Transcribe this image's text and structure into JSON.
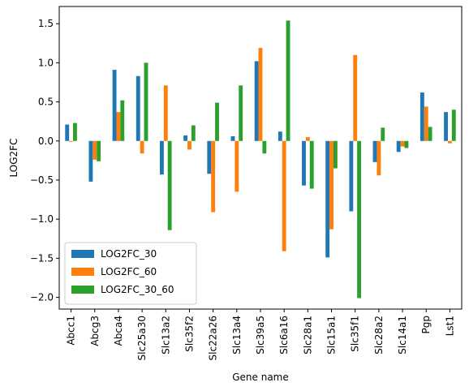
{
  "chart_data": {
    "type": "bar",
    "title": "",
    "xlabel": "Gene name",
    "ylabel": "LOG2FC",
    "ylim": [
      -2.15,
      1.72
    ],
    "yticks": [
      -2.0,
      -1.5,
      -1.0,
      -0.5,
      0.0,
      0.5,
      1.0,
      1.5
    ],
    "ytick_labels": [
      "−2.0",
      "−1.5",
      "−1.0",
      "−0.5",
      "0.0",
      "0.5",
      "1.0",
      "1.5"
    ],
    "grid": false,
    "legend_position": "lower-left",
    "categories": [
      "Abcc1",
      "Abcg3",
      "Abca4",
      "Slc25a30",
      "Slc13a2",
      "Slc35f2",
      "Slc22a26",
      "Slc13a4",
      "Slc39a5",
      "Slc6a16",
      "Slc28a1",
      "Slc15a1",
      "Slc35f1",
      "Slc28a2",
      "Slc14a1",
      "Pgp",
      "Lst1"
    ],
    "series": [
      {
        "name": "LOG2FC_30",
        "color": "#1f77b4",
        "values": [
          0.21,
          -0.52,
          0.91,
          0.83,
          -0.43,
          0.07,
          -0.42,
          0.06,
          1.02,
          0.12,
          -0.57,
          -1.49,
          -0.9,
          -0.27,
          -0.14,
          0.62,
          0.37
        ]
      },
      {
        "name": "LOG2FC_60",
        "color": "#ff7f0e",
        "values": [
          -0.01,
          -0.24,
          0.37,
          -0.16,
          0.71,
          -0.11,
          -0.91,
          -0.65,
          1.19,
          -1.41,
          0.05,
          -1.13,
          1.1,
          -0.44,
          -0.07,
          0.44,
          -0.03
        ]
      },
      {
        "name": "LOG2FC_30_60",
        "color": "#2ca02c",
        "values": [
          0.23,
          -0.26,
          0.52,
          1.0,
          -1.14,
          0.2,
          0.49,
          0.71,
          -0.16,
          1.54,
          -0.61,
          -0.35,
          -2.01,
          0.17,
          -0.09,
          0.18,
          0.4
        ]
      }
    ]
  }
}
